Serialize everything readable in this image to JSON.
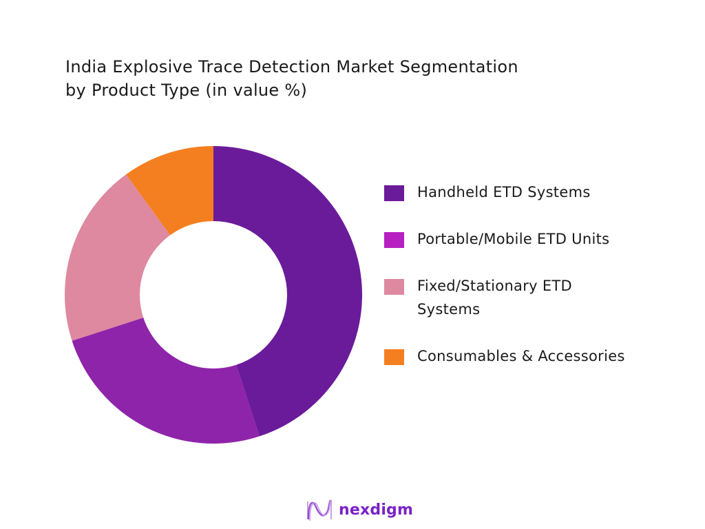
{
  "chart_data": {
    "type": "pie",
    "subtype": "donut",
    "title": "India Explosive Trace Detection Market Segmentation by Product Type (in value %)",
    "title_lines": [
      "India Explosive Trace Detection Market Segmentation",
      "by Product Type (in value %)"
    ],
    "categories": [
      "Handheld ETD Systems",
      "Portable/Mobile ETD Units",
      "Fixed/Stationary ETD Systems",
      "Consumables & Accessories"
    ],
    "legend_lines": [
      [
        "Handheld ETD Systems"
      ],
      [
        "Portable/Mobile ETD Units"
      ],
      [
        "Fixed/Stationary ETD",
        "Systems"
      ],
      [
        "Consumables & Accessories"
      ]
    ],
    "values": [
      45,
      25,
      20,
      10
    ],
    "slice_colors": [
      "#6a1b9a",
      "#8e24aa",
      "#de89a0",
      "#f47f20"
    ],
    "legend_colors": [
      "#6a1b9a",
      "#b620c0",
      "#de89a0",
      "#f47f20"
    ],
    "legend_position": "right"
  },
  "brand": {
    "name": "nexdigm",
    "color": "#7a22c8"
  }
}
